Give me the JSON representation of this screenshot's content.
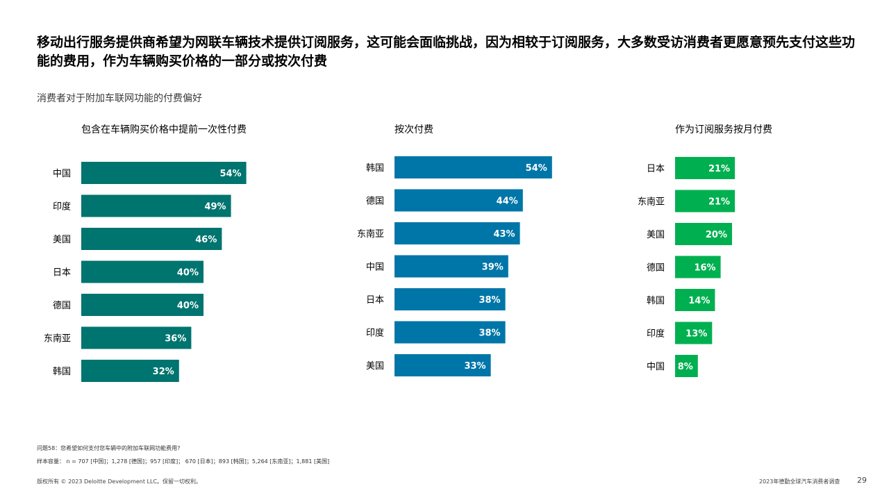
{
  "page": {
    "title": "移动出行服务提供商希望为网联车辆技术提供订阅服务，这可能会面临挑战，因为相较于订阅服务，大多数受访消费者更愿意预先支付这些功能的费用，作为车辆购买价格的一部分或按次付费",
    "subtitle": "消费者对于附加车联网功能的付费偏好"
  },
  "chart_data": [
    {
      "type": "bar",
      "orientation": "horizontal",
      "title": "包含在车辆购买价格中提前一次性付费",
      "color": "#00746F",
      "categories": [
        "中国",
        "印度",
        "美国",
        "日本",
        "德国",
        "东南亚",
        "韩国"
      ],
      "values": [
        54,
        49,
        46,
        40,
        40,
        36,
        32
      ],
      "value_labels": [
        "54%",
        "49%",
        "46%",
        "40%",
        "40%",
        "36%",
        "32%"
      ],
      "unit": "%",
      "xlim": [
        0,
        100
      ]
    },
    {
      "type": "bar",
      "orientation": "horizontal",
      "title": "按次付费",
      "color": "#0076A8",
      "categories": [
        "韩国",
        "德国",
        "东南亚",
        "中国",
        "日本",
        "印度",
        "美国"
      ],
      "values": [
        54,
        44,
        43,
        39,
        38,
        38,
        33
      ],
      "value_labels": [
        "54%",
        "44%",
        "43%",
        "39%",
        "38%",
        "38%",
        "33%"
      ],
      "unit": "%",
      "xlim": [
        0,
        100
      ]
    },
    {
      "type": "bar",
      "orientation": "horizontal",
      "title": "作为订阅服务按月付费",
      "color": "#00B050",
      "categories": [
        "日本",
        "东南亚",
        "美国",
        "德国",
        "韩国",
        "印度",
        "中国"
      ],
      "values": [
        21,
        21,
        20,
        16,
        14,
        13,
        8
      ],
      "value_labels": [
        "21%",
        "21%",
        "20%",
        "16%",
        "14%",
        "13%",
        "8%"
      ],
      "unit": "%",
      "xlim": [
        0,
        100
      ]
    }
  ],
  "footnotes": {
    "question": "问题58：您希望如何支付您车辆中的附加车联网功能费用?",
    "sample": "样本容量： n = 707 [中国]；1,278 [德国]；957 [印度]； 670 [日本]；893 [韩国]；5,264 [东南亚]；1,881 [美国]"
  },
  "footer": {
    "copyright": "版权所有 © 2023 Deloitte Development LLC。保留一切权利。",
    "report": "2023年德勤全球汽车消费者调查",
    "page_number": "29"
  }
}
